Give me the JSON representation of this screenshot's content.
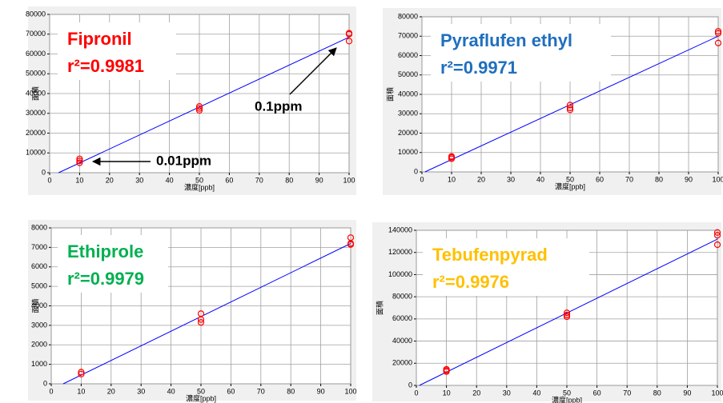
{
  "chart_data": [
    {
      "type": "scatter",
      "title": "Fipronil",
      "annotation": "r²=0.9981",
      "title_color": "#ff0000",
      "x_label": "濃度[ppb]",
      "y_label": "面積",
      "x": [
        10,
        10,
        10,
        50,
        50,
        50,
        100,
        100,
        100
      ],
      "values": [
        7000,
        6000,
        5000,
        33500,
        32500,
        31500,
        70500,
        70000,
        66500
      ],
      "color": "#ff0000",
      "fit": {
        "x": [
          3,
          100
        ],
        "y": [
          0,
          68500
        ],
        "color": "#0000ff"
      },
      "xlim": [
        0,
        100
      ],
      "xticks": [
        0,
        10,
        20,
        30,
        40,
        50,
        60,
        70,
        80,
        90,
        100
      ],
      "ylim": [
        0,
        80000
      ],
      "yticks": [
        0,
        10000,
        20000,
        30000,
        40000,
        50000,
        60000,
        70000,
        80000
      ],
      "grid": true,
      "notes": [
        "0.1ppm",
        "0.01ppm"
      ]
    },
    {
      "type": "scatter",
      "title": "Pyraflufen ethyl",
      "annotation": "r²=0.9971",
      "title_color": "#1f6fbf",
      "x_label": "濃度[ppb]",
      "y_label": "面積",
      "x": [
        10,
        10,
        10,
        50,
        50,
        50,
        100,
        100,
        100
      ],
      "values": [
        8000,
        7500,
        6800,
        34500,
        33000,
        32000,
        72500,
        71500,
        66500
      ],
      "color": "#ff0000",
      "fit": {
        "x": [
          1,
          100
        ],
        "y": [
          0,
          70000
        ],
        "color": "#0000ff"
      },
      "xlim": [
        0,
        100
      ],
      "xticks": [
        0,
        10,
        20,
        30,
        40,
        50,
        60,
        70,
        80,
        90,
        100
      ],
      "ylim": [
        0,
        80000
      ],
      "yticks": [
        0,
        10000,
        20000,
        30000,
        40000,
        50000,
        60000,
        70000,
        80000
      ],
      "grid": true
    },
    {
      "type": "scatter",
      "title": "Ethiprole",
      "annotation": "r²=0.9979",
      "title_color": "#00b050",
      "x_label": "濃度[ppb]",
      "y_label": "面積",
      "x": [
        10,
        10,
        50,
        50,
        50,
        100,
        100,
        100
      ],
      "values": [
        600,
        500,
        3600,
        3300,
        3150,
        7500,
        7200,
        7150
      ],
      "color": "#ff0000",
      "fit": {
        "x": [
          4,
          100
        ],
        "y": [
          0,
          7200
        ],
        "color": "#0000ff"
      },
      "xlim": [
        0,
        100
      ],
      "xticks": [
        0,
        10,
        20,
        30,
        40,
        50,
        60,
        70,
        80,
        90,
        100
      ],
      "ylim": [
        0,
        8000
      ],
      "yticks": [
        0,
        1000,
        2000,
        3000,
        4000,
        5000,
        6000,
        7000,
        8000
      ],
      "grid": true
    },
    {
      "type": "scatter",
      "title": "Tebufenpyrad",
      "annotation": "r²=0.9976",
      "title_color": "#ffc000",
      "x_label": "濃度[ppb]",
      "y_label": "面積",
      "x": [
        10,
        10,
        10,
        50,
        50,
        50,
        100,
        100,
        100
      ],
      "values": [
        14500,
        13500,
        12500,
        65500,
        63500,
        62000,
        138000,
        135500,
        127000
      ],
      "color": "#ff0000",
      "fit": {
        "x": [
          1,
          100
        ],
        "y": [
          0,
          132000
        ],
        "color": "#0000ff"
      },
      "xlim": [
        0,
        100
      ],
      "xticks": [
        0,
        10,
        20,
        30,
        40,
        50,
        60,
        70,
        80,
        90,
        100
      ],
      "ylim": [
        0,
        140000
      ],
      "yticks": [
        0,
        20000,
        40000,
        60000,
        80000,
        100000,
        120000,
        140000
      ],
      "grid": true
    }
  ]
}
